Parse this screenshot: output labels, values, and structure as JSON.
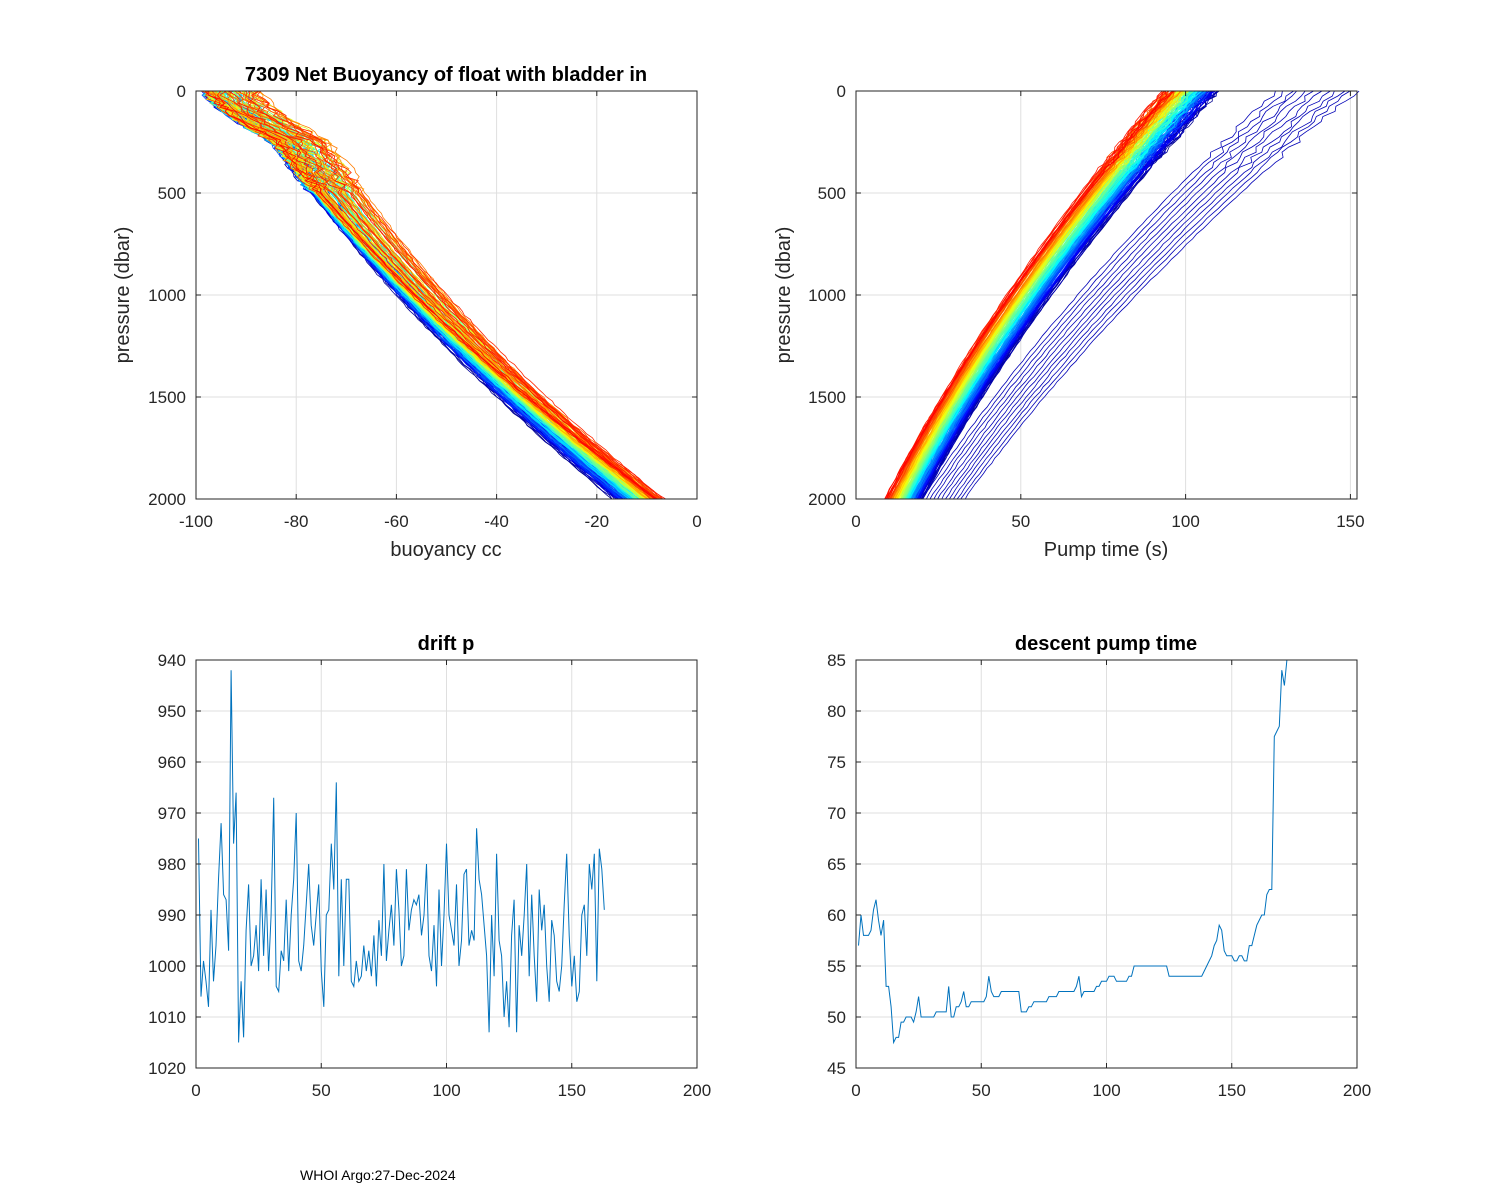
{
  "footer_text": "WHOI Argo:27-Dec-2024",
  "colors": {
    "line_single": "#0072BD",
    "grid": "#dfdfdf",
    "axis": "#262626",
    "jet_ramp": [
      "#00008F",
      "#0000FF",
      "#0080FF",
      "#00FFFF",
      "#80FF80",
      "#FFFF00",
      "#FF8000",
      "#FF0000"
    ]
  },
  "chart_data": [
    {
      "id": "buoyancy",
      "type": "line",
      "title": "7309 Net Buoyancy of float with bladder in",
      "xlabel": "buoyancy cc",
      "ylabel": "pressure (dbar)",
      "xlim": [
        -100,
        0
      ],
      "ylim": [
        0,
        2000
      ],
      "y_reversed": true,
      "xticks": [
        -100,
        -80,
        -60,
        -40,
        -20,
        0
      ],
      "xtick_labels": [
        "-100",
        "-80",
        "-60",
        "-40",
        "-20",
        "0"
      ],
      "yticks": [
        0,
        500,
        1000,
        1500,
        2000
      ],
      "ytick_labels": [
        "0",
        "500",
        "1000",
        "1500",
        "2000"
      ],
      "grid": true,
      "colormap": "jet",
      "series_count": 160,
      "family": {
        "x_at_p0": [
          -98,
          -84
        ],
        "x_at_p2000": [
          -17,
          -7
        ],
        "knee_pressure": 250
      }
    },
    {
      "id": "pumptime",
      "type": "line",
      "title": "",
      "xlabel": "Pump time (s)",
      "ylabel": "pressure (dbar)",
      "xlim": [
        0,
        152
      ],
      "ylim": [
        0,
        2000
      ],
      "y_reversed": true,
      "xticks": [
        0,
        50,
        100,
        150
      ],
      "xtick_labels": [
        "0",
        "50",
        "100",
        "150"
      ],
      "yticks": [
        0,
        500,
        1000,
        1500,
        2000
      ],
      "ytick_labels": [
        "0",
        "500",
        "1000",
        "1500",
        "2000"
      ],
      "grid": true,
      "colormap": "jet",
      "series_count": 160,
      "family_main": {
        "x_at_p0": [
          94,
          112
        ],
        "x_at_p2000": [
          9,
          20
        ]
      },
      "family_outliers": {
        "count": 12,
        "x_at_p0": [
          128,
          152
        ],
        "x_at_p2000": [
          20,
          33
        ]
      }
    },
    {
      "id": "driftp",
      "type": "line",
      "title": "drift p",
      "xlabel": "",
      "ylabel": "",
      "xlim": [
        0,
        200
      ],
      "ylim": [
        940,
        1020
      ],
      "y_reversed": true,
      "xticks": [
        0,
        50,
        100,
        150,
        200
      ],
      "xtick_labels": [
        "0",
        "50",
        "100",
        "150",
        "200"
      ],
      "yticks": [
        940,
        950,
        960,
        970,
        980,
        990,
        1000,
        1010,
        1020
      ],
      "ytick_labels": [
        "940",
        "950",
        "960",
        "970",
        "980",
        "990",
        "1000",
        "1010",
        "1020"
      ],
      "grid": true,
      "x_start": 1,
      "values": [
        975,
        1006,
        999,
        1003,
        1008,
        989,
        1003,
        996,
        983,
        972,
        986,
        987,
        997,
        942,
        976,
        966,
        1015,
        1003,
        1014,
        993,
        984,
        1000,
        998,
        992,
        1001,
        983,
        998,
        985,
        1001,
        990,
        967,
        1004,
        1005,
        997,
        999,
        987,
        1001,
        990,
        983,
        970,
        999,
        1001,
        996,
        988,
        980,
        992,
        996,
        990,
        984,
        1001,
        1008,
        990,
        989,
        976,
        985,
        964,
        1002,
        983,
        1000,
        983,
        983,
        1003,
        1004,
        999,
        1003,
        1002,
        996,
        1001,
        997,
        1002,
        994,
        1004,
        991,
        998,
        980,
        999,
        993,
        988,
        996,
        981,
        989,
        1000,
        998,
        981,
        993,
        989,
        987,
        988,
        986,
        994,
        990,
        980,
        998,
        1001,
        992,
        1004,
        985,
        1000,
        990,
        976,
        990,
        993,
        996,
        984,
        1000,
        995,
        982,
        981,
        996,
        993,
        995,
        973,
        983,
        986,
        992,
        998,
        1013,
        990,
        1002,
        978,
        995,
        998,
        1010,
        1003,
        1012,
        994,
        987,
        1013,
        992,
        998,
        990,
        980,
        1002,
        986,
        998,
        1007,
        985,
        993,
        988,
        1000,
        1007,
        991,
        994,
        1003,
        1005,
        1000,
        988,
        978,
        994,
        1004,
        998,
        1007,
        1005,
        990,
        988,
        998,
        980,
        985,
        978,
        1003,
        977,
        981,
        989
      ]
    },
    {
      "id": "pumpdesc",
      "type": "line",
      "title": "descent pump time",
      "xlabel": "",
      "ylabel": "",
      "xlim": [
        0,
        200
      ],
      "ylim": [
        45,
        85
      ],
      "y_reversed": false,
      "xticks": [
        0,
        50,
        100,
        150,
        200
      ],
      "xtick_labels": [
        "0",
        "50",
        "100",
        "150",
        "200"
      ],
      "yticks": [
        45,
        50,
        55,
        60,
        65,
        70,
        75,
        80,
        85
      ],
      "ytick_labels": [
        "45",
        "50",
        "55",
        "60",
        "65",
        "70",
        "75",
        "80",
        "85"
      ],
      "grid": true,
      "x_start": 1,
      "values": [
        57,
        60,
        58,
        58,
        58,
        58.5,
        60.5,
        61.5,
        59.5,
        58,
        59.5,
        53,
        53,
        51,
        47.5,
        48,
        48,
        49.5,
        49.5,
        50,
        50,
        50,
        49.5,
        50.5,
        52,
        50,
        50,
        50,
        50,
        50,
        50,
        50.5,
        50.5,
        50.5,
        50.5,
        50.5,
        53,
        50,
        50,
        51,
        51,
        51.5,
        52.5,
        51,
        51,
        51.5,
        51.5,
        51.5,
        51.5,
        51.5,
        51.5,
        52,
        54,
        52.5,
        52,
        52,
        52,
        52.5,
        52.5,
        52.5,
        52.5,
        52.5,
        52.5,
        52.5,
        52.5,
        50.5,
        50.5,
        50.5,
        51,
        51,
        51.5,
        51.5,
        51.5,
        51.5,
        51.5,
        51.5,
        52,
        52,
        52,
        52,
        52.5,
        52.5,
        52.5,
        52.5,
        52.5,
        52.5,
        52.5,
        53,
        54,
        52,
        52.5,
        52.5,
        52.5,
        52.5,
        52.5,
        53,
        53,
        53.5,
        53.5,
        53.5,
        54,
        54,
        54,
        53.5,
        53.5,
        53.5,
        53.5,
        53.5,
        54,
        54,
        55,
        55,
        55,
        55,
        55,
        55,
        55,
        55,
        55,
        55,
        55,
        55,
        55,
        55,
        54,
        54,
        54,
        54,
        54,
        54,
        54,
        54,
        54,
        54,
        54,
        54,
        54,
        54,
        54.5,
        55,
        55.5,
        56,
        57,
        57.5,
        59,
        58.5,
        56.5,
        56,
        56,
        56,
        55.5,
        55.5,
        56,
        56,
        55.5,
        55.5,
        57,
        57,
        58,
        59,
        59.5,
        60,
        60,
        62,
        62.5,
        62.5,
        77.5,
        78,
        78.5,
        84,
        82.5,
        85,
        85,
        85,
        85
      ]
    }
  ]
}
